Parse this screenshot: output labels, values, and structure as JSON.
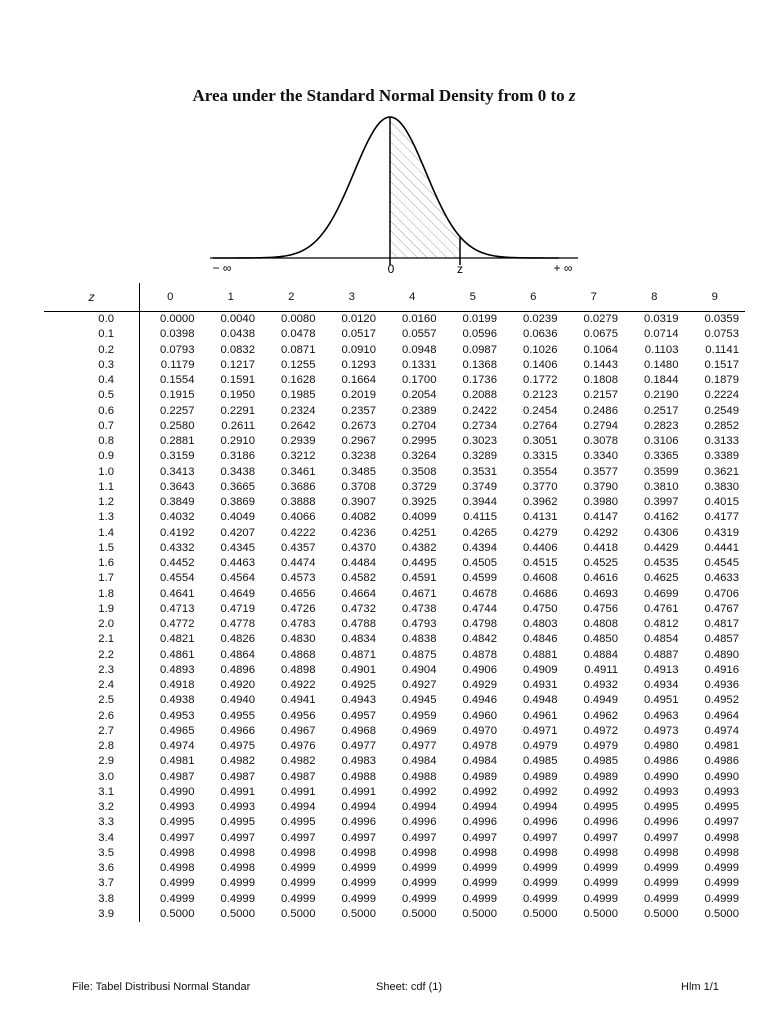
{
  "title_text": "Area under the Standard Normal Density from 0 to",
  "title_var": "z",
  "curve_labels": {
    "neg_inf": "− ∞",
    "zero": "0",
    "z": "z",
    "pos_inf": "+ ∞"
  },
  "table": {
    "header": [
      "z",
      "0",
      "1",
      "2",
      "3",
      "4",
      "5",
      "6",
      "7",
      "8",
      "9"
    ],
    "rows": [
      [
        "0.0",
        "0.0000",
        "0.0040",
        "0.0080",
        "0.0120",
        "0.0160",
        "0.0199",
        "0.0239",
        "0.0279",
        "0.0319",
        "0.0359"
      ],
      [
        "0.1",
        "0.0398",
        "0.0438",
        "0.0478",
        "0.0517",
        "0.0557",
        "0.0596",
        "0.0636",
        "0.0675",
        "0.0714",
        "0.0753"
      ],
      [
        "0.2",
        "0.0793",
        "0.0832",
        "0.0871",
        "0.0910",
        "0.0948",
        "0.0987",
        "0.1026",
        "0.1064",
        "0.1103",
        "0.1141"
      ],
      [
        "0.3",
        "0.1179",
        "0.1217",
        "0.1255",
        "0.1293",
        "0.1331",
        "0.1368",
        "0.1406",
        "0.1443",
        "0.1480",
        "0.1517"
      ],
      [
        "0.4",
        "0.1554",
        "0.1591",
        "0.1628",
        "0.1664",
        "0.1700",
        "0.1736",
        "0.1772",
        "0.1808",
        "0.1844",
        "0.1879"
      ],
      [
        "0.5",
        "0.1915",
        "0.1950",
        "0.1985",
        "0.2019",
        "0.2054",
        "0.2088",
        "0.2123",
        "0.2157",
        "0.2190",
        "0.2224"
      ],
      [
        "0.6",
        "0.2257",
        "0.2291",
        "0.2324",
        "0.2357",
        "0.2389",
        "0.2422",
        "0.2454",
        "0.2486",
        "0.2517",
        "0.2549"
      ],
      [
        "0.7",
        "0.2580",
        "0.2611",
        "0.2642",
        "0.2673",
        "0.2704",
        "0.2734",
        "0.2764",
        "0.2794",
        "0.2823",
        "0.2852"
      ],
      [
        "0.8",
        "0.2881",
        "0.2910",
        "0.2939",
        "0.2967",
        "0.2995",
        "0.3023",
        "0.3051",
        "0.3078",
        "0.3106",
        "0.3133"
      ],
      [
        "0.9",
        "0.3159",
        "0.3186",
        "0.3212",
        "0.3238",
        "0.3264",
        "0.3289",
        "0.3315",
        "0.3340",
        "0.3365",
        "0.3389"
      ],
      [
        "1.0",
        "0.3413",
        "0.3438",
        "0.3461",
        "0.3485",
        "0.3508",
        "0.3531",
        "0.3554",
        "0.3577",
        "0.3599",
        "0.3621"
      ],
      [
        "1.1",
        "0.3643",
        "0.3665",
        "0.3686",
        "0.3708",
        "0.3729",
        "0.3749",
        "0.3770",
        "0.3790",
        "0.3810",
        "0.3830"
      ],
      [
        "1.2",
        "0.3849",
        "0.3869",
        "0.3888",
        "0.3907",
        "0.3925",
        "0.3944",
        "0.3962",
        "0.3980",
        "0.3997",
        "0.4015"
      ],
      [
        "1.3",
        "0.4032",
        "0.4049",
        "0.4066",
        "0.4082",
        "0.4099",
        "0.4115",
        "0.4131",
        "0.4147",
        "0.4162",
        "0.4177"
      ],
      [
        "1.4",
        "0.4192",
        "0.4207",
        "0.4222",
        "0.4236",
        "0.4251",
        "0.4265",
        "0.4279",
        "0.4292",
        "0.4306",
        "0.4319"
      ],
      [
        "1.5",
        "0.4332",
        "0.4345",
        "0.4357",
        "0.4370",
        "0.4382",
        "0.4394",
        "0.4406",
        "0.4418",
        "0.4429",
        "0.4441"
      ],
      [
        "1.6",
        "0.4452",
        "0.4463",
        "0.4474",
        "0.4484",
        "0.4495",
        "0.4505",
        "0.4515",
        "0.4525",
        "0.4535",
        "0.4545"
      ],
      [
        "1.7",
        "0.4554",
        "0.4564",
        "0.4573",
        "0.4582",
        "0.4591",
        "0.4599",
        "0.4608",
        "0.4616",
        "0.4625",
        "0.4633"
      ],
      [
        "1.8",
        "0.4641",
        "0.4649",
        "0.4656",
        "0.4664",
        "0.4671",
        "0.4678",
        "0.4686",
        "0.4693",
        "0.4699",
        "0.4706"
      ],
      [
        "1.9",
        "0.4713",
        "0.4719",
        "0.4726",
        "0.4732",
        "0.4738",
        "0.4744",
        "0.4750",
        "0.4756",
        "0.4761",
        "0.4767"
      ],
      [
        "2.0",
        "0.4772",
        "0.4778",
        "0.4783",
        "0.4788",
        "0.4793",
        "0.4798",
        "0.4803",
        "0.4808",
        "0.4812",
        "0.4817"
      ],
      [
        "2.1",
        "0.4821",
        "0.4826",
        "0.4830",
        "0.4834",
        "0.4838",
        "0.4842",
        "0.4846",
        "0.4850",
        "0.4854",
        "0.4857"
      ],
      [
        "2.2",
        "0.4861",
        "0.4864",
        "0.4868",
        "0.4871",
        "0.4875",
        "0.4878",
        "0.4881",
        "0.4884",
        "0.4887",
        "0.4890"
      ],
      [
        "2.3",
        "0.4893",
        "0.4896",
        "0.4898",
        "0.4901",
        "0.4904",
        "0.4906",
        "0.4909",
        "0.4911",
        "0.4913",
        "0.4916"
      ],
      [
        "2.4",
        "0.4918",
        "0.4920",
        "0.4922",
        "0.4925",
        "0.4927",
        "0.4929",
        "0.4931",
        "0.4932",
        "0.4934",
        "0.4936"
      ],
      [
        "2.5",
        "0.4938",
        "0.4940",
        "0.4941",
        "0.4943",
        "0.4945",
        "0.4946",
        "0.4948",
        "0.4949",
        "0.4951",
        "0.4952"
      ],
      [
        "2.6",
        "0.4953",
        "0.4955",
        "0.4956",
        "0.4957",
        "0.4959",
        "0.4960",
        "0.4961",
        "0.4962",
        "0.4963",
        "0.4964"
      ],
      [
        "2.7",
        "0.4965",
        "0.4966",
        "0.4967",
        "0.4968",
        "0.4969",
        "0.4970",
        "0.4971",
        "0.4972",
        "0.4973",
        "0.4974"
      ],
      [
        "2.8",
        "0.4974",
        "0.4975",
        "0.4976",
        "0.4977",
        "0.4977",
        "0.4978",
        "0.4979",
        "0.4979",
        "0.4980",
        "0.4981"
      ],
      [
        "2.9",
        "0.4981",
        "0.4982",
        "0.4982",
        "0.4983",
        "0.4984",
        "0.4984",
        "0.4985",
        "0.4985",
        "0.4986",
        "0.4986"
      ],
      [
        "3.0",
        "0.4987",
        "0.4987",
        "0.4987",
        "0.4988",
        "0.4988",
        "0.4989",
        "0.4989",
        "0.4989",
        "0.4990",
        "0.4990"
      ],
      [
        "3.1",
        "0.4990",
        "0.4991",
        "0.4991",
        "0.4991",
        "0.4992",
        "0.4992",
        "0.4992",
        "0.4992",
        "0.4993",
        "0.4993"
      ],
      [
        "3.2",
        "0.4993",
        "0.4993",
        "0.4994",
        "0.4994",
        "0.4994",
        "0.4994",
        "0.4994",
        "0.4995",
        "0.4995",
        "0.4995"
      ],
      [
        "3.3",
        "0.4995",
        "0.4995",
        "0.4995",
        "0.4996",
        "0.4996",
        "0.4996",
        "0.4996",
        "0.4996",
        "0.4996",
        "0.4997"
      ],
      [
        "3.4",
        "0.4997",
        "0.4997",
        "0.4997",
        "0.4997",
        "0.4997",
        "0.4997",
        "0.4997",
        "0.4997",
        "0.4997",
        "0.4998"
      ],
      [
        "3.5",
        "0.4998",
        "0.4998",
        "0.4998",
        "0.4998",
        "0.4998",
        "0.4998",
        "0.4998",
        "0.4998",
        "0.4998",
        "0.4998"
      ],
      [
        "3.6",
        "0.4998",
        "0.4998",
        "0.4999",
        "0.4999",
        "0.4999",
        "0.4999",
        "0.4999",
        "0.4999",
        "0.4999",
        "0.4999"
      ],
      [
        "3.7",
        "0.4999",
        "0.4999",
        "0.4999",
        "0.4999",
        "0.4999",
        "0.4999",
        "0.4999",
        "0.4999",
        "0.4999",
        "0.4999"
      ],
      [
        "3.8",
        "0.4999",
        "0.4999",
        "0.4999",
        "0.4999",
        "0.4999",
        "0.4999",
        "0.4999",
        "0.4999",
        "0.4999",
        "0.4999"
      ],
      [
        "3.9",
        "0.5000",
        "0.5000",
        "0.5000",
        "0.5000",
        "0.5000",
        "0.5000",
        "0.5000",
        "0.5000",
        "0.5000",
        "0.5000"
      ]
    ]
  },
  "footer": {
    "file": "File: Tabel Distribusi Normal Standar",
    "sheet": "Sheet: cdf (1)",
    "page": "Hlm 1/1"
  }
}
